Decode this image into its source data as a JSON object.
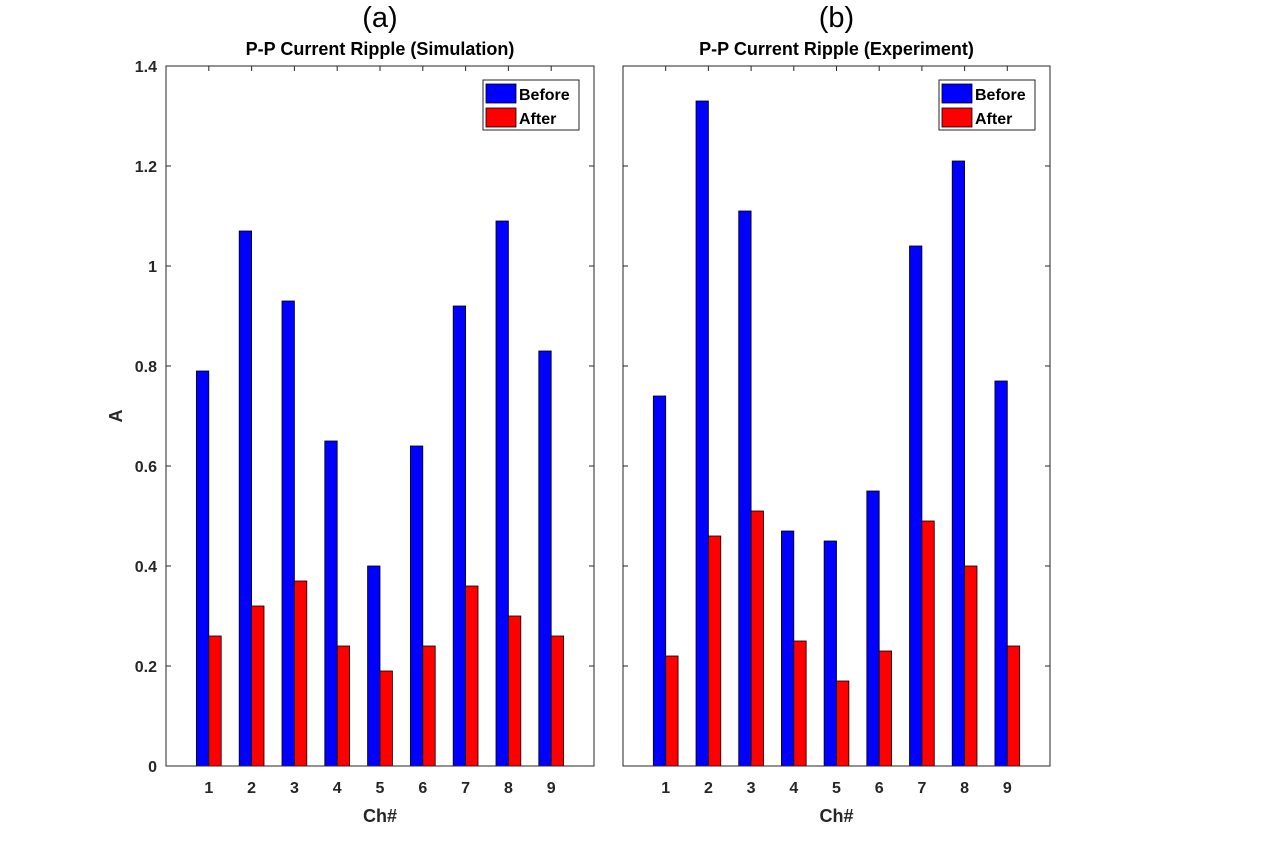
{
  "chart_data": [
    {
      "type": "bar",
      "panel_label": "(a)",
      "title": "P-P Current Ripple (Simulation)",
      "xlabel": "Ch#",
      "ylabel": "A",
      "ylim": [
        0,
        1.4
      ],
      "yticks": [
        0,
        0.2,
        0.4,
        0.6,
        0.8,
        1,
        1.2,
        1.4
      ],
      "ytick_labels": [
        "0",
        "0.2",
        "0.4",
        "0.6",
        "0.8",
        "1",
        "1.2",
        "1.4"
      ],
      "show_ytick_labels": true,
      "categories": [
        "1",
        "2",
        "3",
        "4",
        "5",
        "6",
        "7",
        "8",
        "9"
      ],
      "legend_position": "top-right",
      "series": [
        {
          "name": "Before",
          "color": "#0000ff",
          "values": [
            0.79,
            1.07,
            0.93,
            0.65,
            0.4,
            0.64,
            0.92,
            1.09,
            0.83
          ]
        },
        {
          "name": "After",
          "color": "#ff0000",
          "values": [
            0.26,
            0.32,
            0.37,
            0.24,
            0.19,
            0.24,
            0.36,
            0.3,
            0.26
          ]
        }
      ]
    },
    {
      "type": "bar",
      "panel_label": "(b)",
      "title": "P-P Current Ripple (Experiment)",
      "xlabel": "Ch#",
      "ylabel": "",
      "ylim": [
        0,
        1.4
      ],
      "yticks": [
        0,
        0.2,
        0.4,
        0.6,
        0.8,
        1,
        1.2,
        1.4
      ],
      "ytick_labels": [],
      "show_ytick_labels": false,
      "categories": [
        "1",
        "2",
        "3",
        "4",
        "5",
        "6",
        "7",
        "8",
        "9"
      ],
      "legend_position": "top-right",
      "series": [
        {
          "name": "Before",
          "color": "#0000ff",
          "values": [
            0.74,
            1.33,
            1.11,
            0.47,
            0.45,
            0.55,
            1.04,
            1.21,
            0.77
          ]
        },
        {
          "name": "After",
          "color": "#ff0000",
          "values": [
            0.22,
            0.46,
            0.51,
            0.25,
            0.17,
            0.23,
            0.49,
            0.4,
            0.24
          ]
        }
      ]
    }
  ]
}
